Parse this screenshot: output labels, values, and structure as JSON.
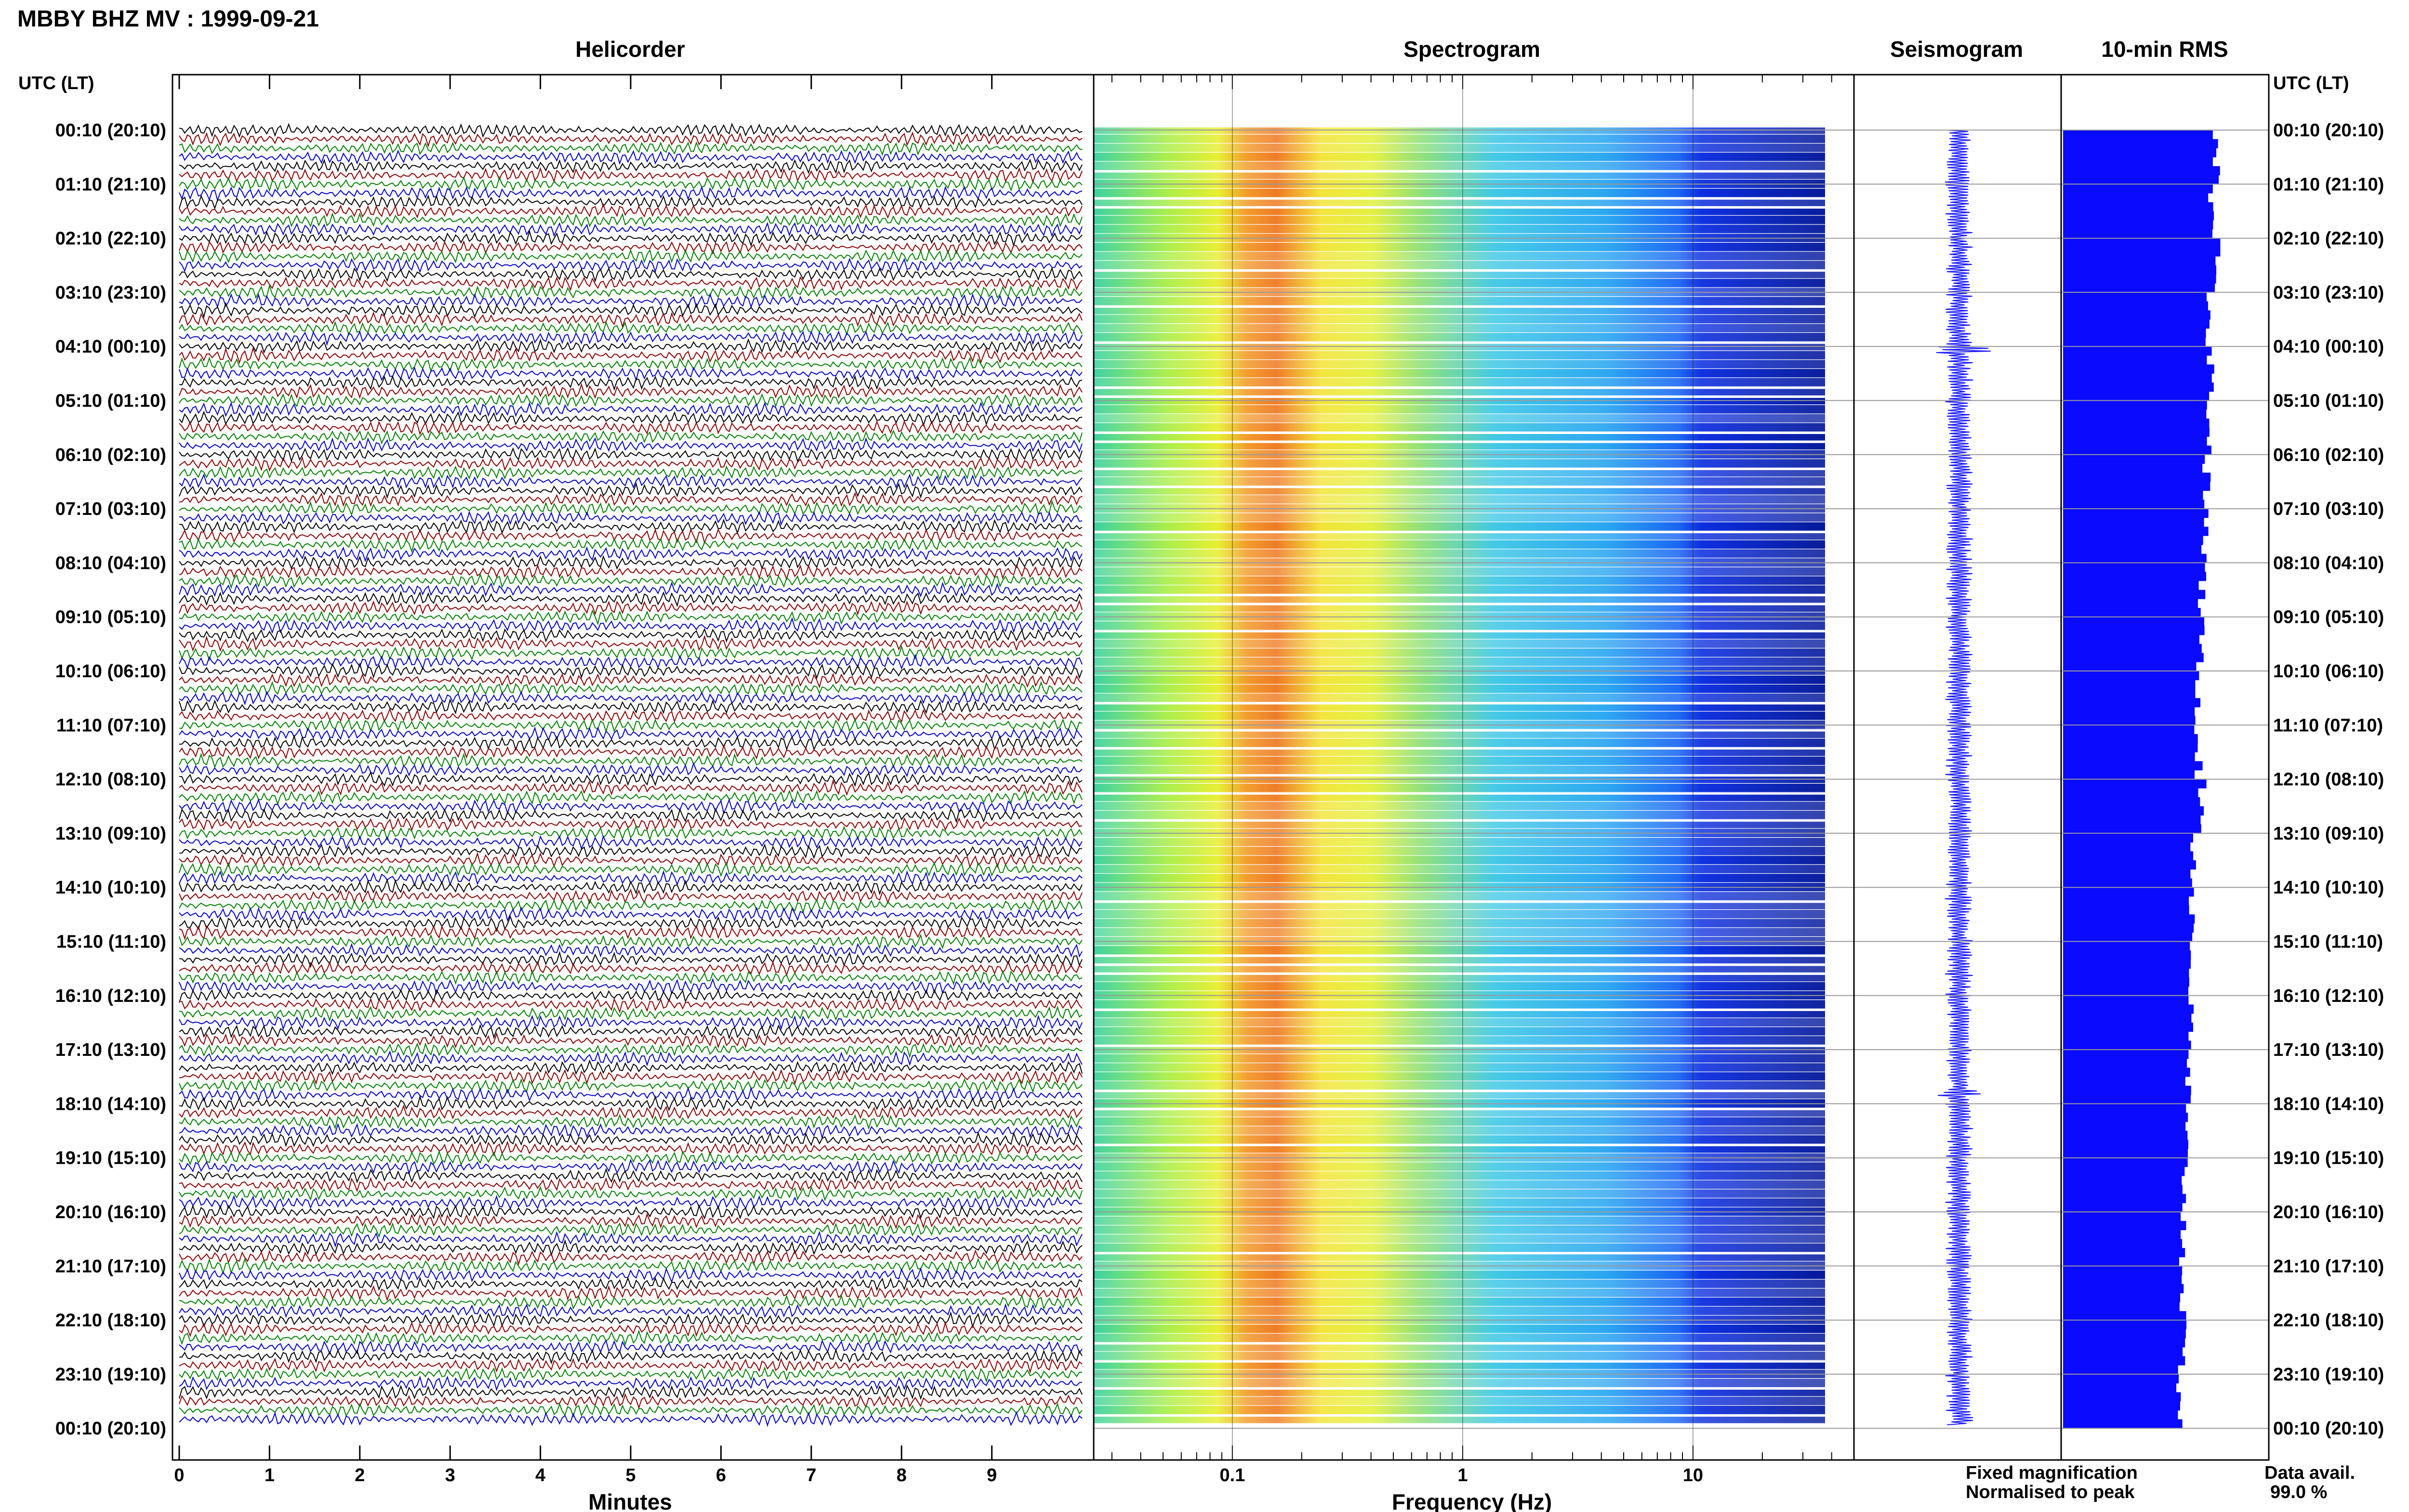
{
  "title": "MBBY BHZ MV : 1999-09-21",
  "panels": {
    "helicorder": "Helicorder",
    "spectrogram": "Spectrogram",
    "seismogram": "Seismogram",
    "rms": "10-min RMS"
  },
  "axis_header_left": "UTC (LT)",
  "axis_header_right": "UTC (LT)",
  "time_labels": [
    "00:10 (20:10)",
    "01:10 (21:10)",
    "02:10 (22:10)",
    "03:10 (23:10)",
    "04:10 (00:10)",
    "05:10 (01:10)",
    "06:10 (02:10)",
    "07:10 (03:10)",
    "08:10 (04:10)",
    "09:10 (05:10)",
    "10:10 (06:10)",
    "11:10 (07:10)",
    "12:10 (08:10)",
    "13:10 (09:10)",
    "14:10 (10:10)",
    "15:10 (11:10)",
    "16:10 (12:10)",
    "17:10 (13:10)",
    "18:10 (14:10)",
    "19:10 (15:10)",
    "20:10 (16:10)",
    "21:10 (17:10)",
    "22:10 (18:10)",
    "23:10 (19:10)",
    "00:10 (20:10)"
  ],
  "helicorder_xlabel": "Minutes",
  "helicorder_ticks": [
    "0",
    "1",
    "2",
    "3",
    "4",
    "5",
    "6",
    "7",
    "8",
    "9"
  ],
  "spectrogram_xlabel": "Frequency (Hz)",
  "spectrogram_ticks": [
    "0.1",
    "1",
    "10"
  ],
  "legend": {
    "fixed": "Fixed magnification",
    "normalised": "Normalised to peak",
    "fixed_color": "#1a1aff",
    "normalised_color": "#ff1a1a"
  },
  "data_avail_label": "Data avail.",
  "data_avail_value": "99.0 %",
  "trace_colors": [
    "#000000",
    "#8b0000",
    "#008000",
    "#0000cc"
  ],
  "chart_data": {
    "type": "heatmap",
    "title": "MBBY BHZ MV : 1999-09-21",
    "helicorder": {
      "xlabel": "Minutes",
      "xlim": [
        0,
        10
      ],
      "rows": 144,
      "row_minutes": 10
    },
    "spectrogram": {
      "xlabel": "Frequency (Hz)",
      "xscale": "log",
      "xlim": [
        0.025,
        50
      ],
      "peak_band_hz": [
        0.15,
        0.25
      ]
    },
    "rms": {
      "type": "bar",
      "xlabel": "",
      "hourly_values": [
        1.0,
        0.97,
        1.01,
        0.95,
        0.96,
        0.95,
        0.93,
        0.92,
        0.9,
        0.89,
        0.88,
        0.88,
        0.9,
        0.85,
        0.84,
        0.83,
        0.82,
        0.81,
        0.79,
        0.79,
        0.78,
        0.78,
        0.77,
        0.76
      ]
    },
    "data_availability_percent": 99.0
  }
}
